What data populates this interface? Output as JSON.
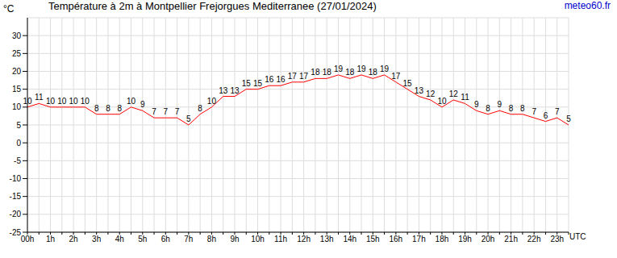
{
  "chart_data": {
    "type": "line",
    "title": "Température à 2m à Montpellier Frejorgues Mediterranee (27/01/2024)",
    "source": "meteo60.fr",
    "y_label": "°C",
    "x_label": "UTC",
    "categories": [
      "00h",
      null,
      "1h",
      null,
      "2h",
      null,
      "3h",
      null,
      "4h",
      null,
      "5h",
      null,
      "6h",
      null,
      "7h",
      null,
      "8h",
      null,
      "9h",
      null,
      "10h",
      null,
      "11h",
      null,
      "12h",
      null,
      "13h",
      null,
      "14h",
      null,
      "15h",
      null,
      "16h",
      null,
      "17h",
      null,
      "18h",
      null,
      "19h",
      null,
      "20h",
      null,
      "21h",
      null,
      "22h",
      null,
      "23h",
      null
    ],
    "values": [
      10,
      11,
      10,
      10,
      10,
      10,
      8,
      8,
      8,
      10,
      9,
      7,
      7,
      7,
      5,
      8,
      10,
      13,
      13,
      15,
      15,
      16,
      16,
      17,
      17,
      18,
      18,
      19,
      18,
      19,
      18,
      19,
      17,
      15,
      13,
      12,
      10,
      12,
      11,
      9,
      8,
      9,
      8,
      8,
      7,
      6,
      7,
      5
    ],
    "color": "#ff0000",
    "ylim": [
      -25,
      35
    ],
    "yticks": [
      -25,
      -20,
      -15,
      -10,
      -5,
      0,
      5,
      10,
      15,
      20,
      25,
      30
    ],
    "grid": true,
    "data_labels": true
  }
}
